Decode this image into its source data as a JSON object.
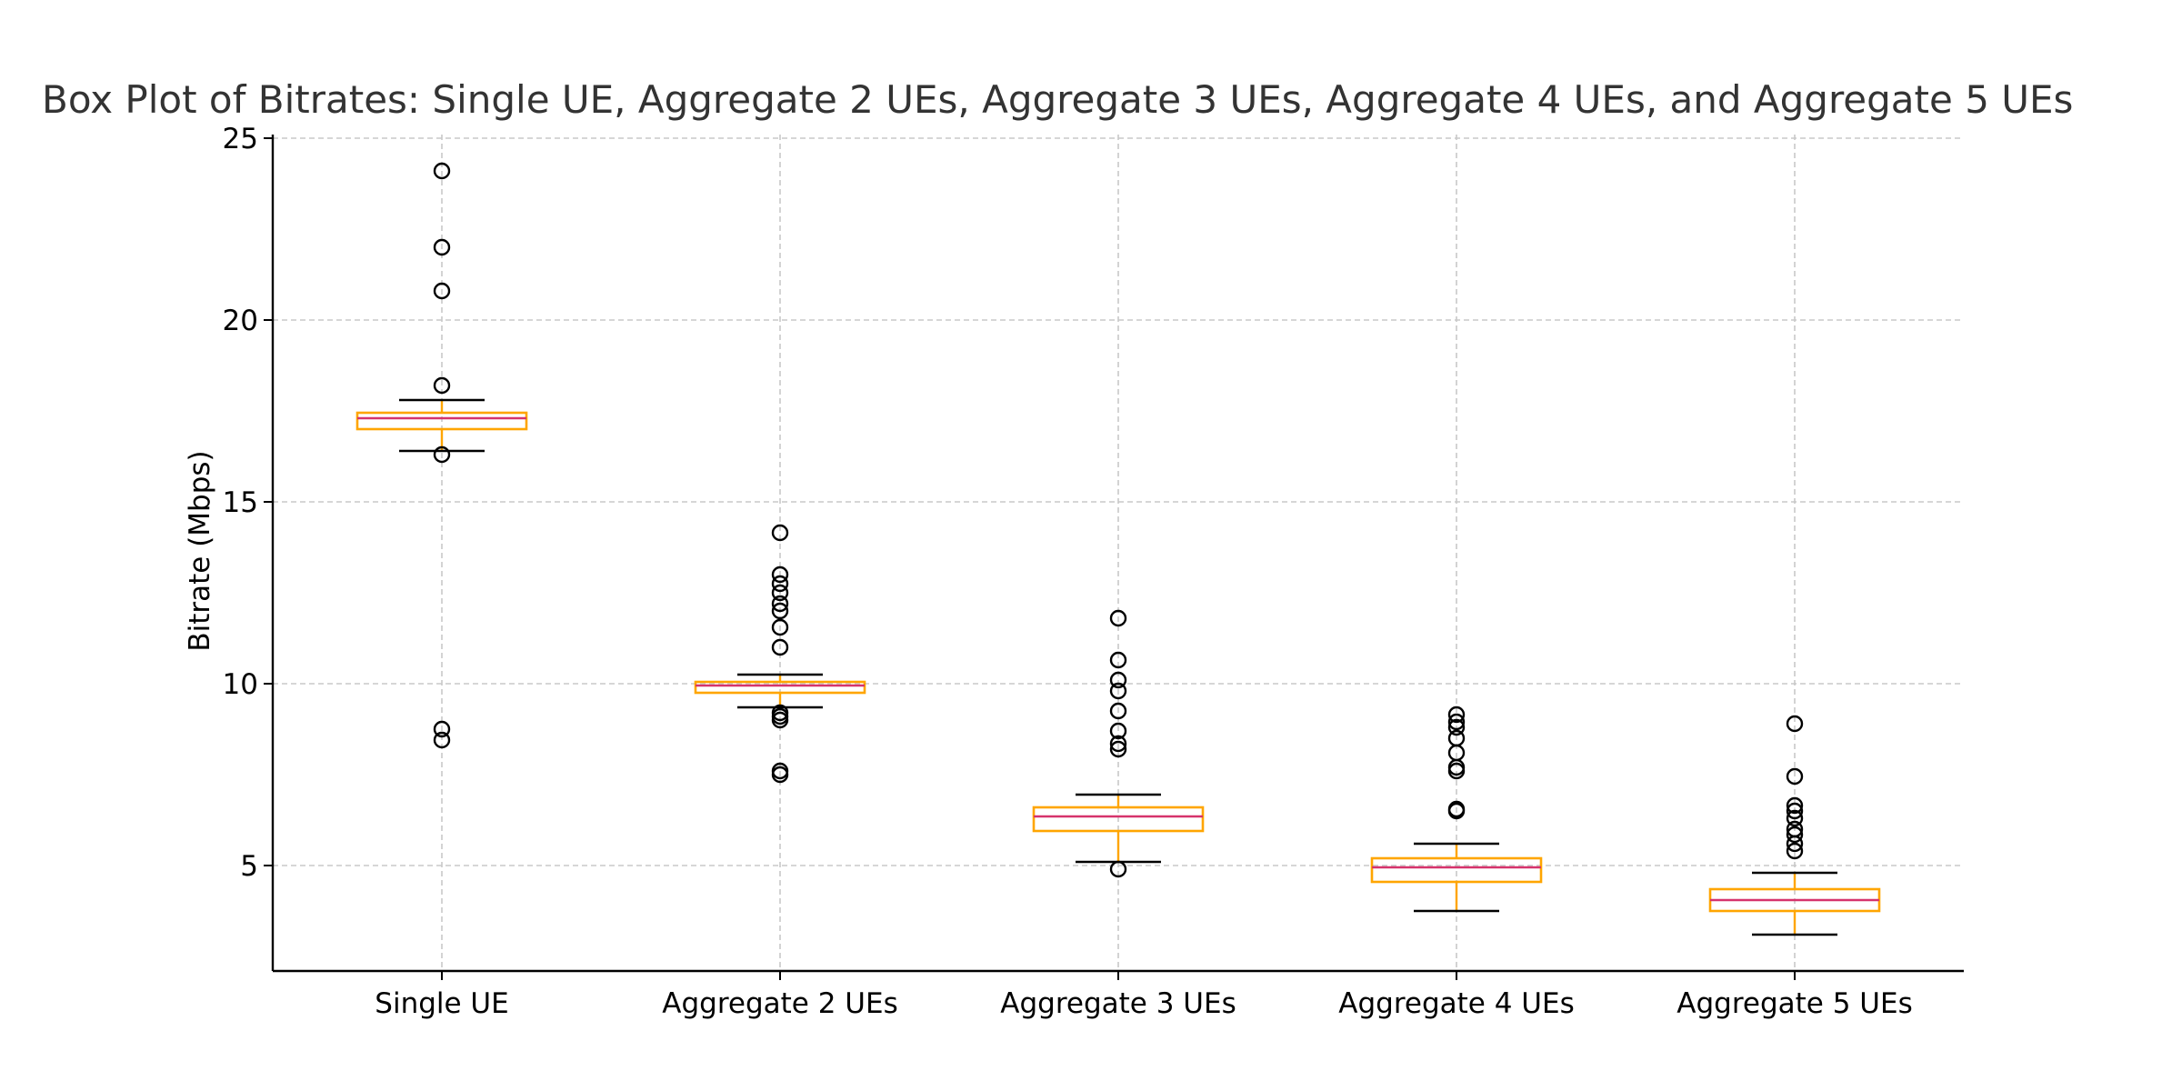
{
  "chart_data": {
    "type": "box",
    "title": "Box Plot of Bitrates: Single UE, Aggregate 2 UEs, Aggregate 3 UEs, Aggregate 4 UEs, and Aggregate 5 UEs",
    "xlabel": "",
    "ylabel": "Bitrate (Mbps)",
    "ylim": [
      2.1,
      25.1
    ],
    "yticks": [
      5,
      10,
      15,
      20,
      25
    ],
    "grid": true,
    "categories": [
      "Single UE",
      "Aggregate 2 UEs",
      "Aggregate 3 UEs",
      "Aggregate 4 UEs",
      "Aggregate 5 UEs"
    ],
    "boxes": [
      {
        "label": "Single UE",
        "whisker_low": 16.4,
        "q1": 17.0,
        "median": 17.3,
        "q3": 17.45,
        "whisker_high": 17.8,
        "outliers": [
          24.1,
          22.0,
          20.8,
          18.2,
          16.3,
          8.75,
          8.45
        ]
      },
      {
        "label": "Aggregate 2 UEs",
        "whisker_low": 9.35,
        "q1": 9.75,
        "median": 9.95,
        "q3": 10.05,
        "whisker_high": 10.25,
        "outliers": [
          14.15,
          13.0,
          12.75,
          12.5,
          12.2,
          12.0,
          11.55,
          11.0,
          9.2,
          9.1,
          9.0,
          7.6,
          7.5
        ]
      },
      {
        "label": "Aggregate 3 UEs",
        "whisker_low": 5.1,
        "q1": 5.95,
        "median": 6.35,
        "q3": 6.6,
        "whisker_high": 6.95,
        "outliers": [
          11.8,
          10.65,
          10.1,
          9.8,
          9.25,
          8.7,
          8.35,
          8.2,
          4.9
        ]
      },
      {
        "label": "Aggregate 4 UEs",
        "whisker_low": 3.75,
        "q1": 4.55,
        "median": 4.95,
        "q3": 5.2,
        "whisker_high": 5.6,
        "outliers": [
          9.15,
          8.95,
          8.8,
          8.5,
          8.1,
          7.7,
          7.6,
          6.55,
          6.5
        ]
      },
      {
        "label": "Aggregate 5 UEs",
        "whisker_low": 3.1,
        "q1": 3.75,
        "median": 4.05,
        "q3": 4.35,
        "whisker_high": 4.8,
        "outliers": [
          8.9,
          7.45,
          6.65,
          6.5,
          6.3,
          6.0,
          5.85,
          5.6,
          5.4
        ]
      }
    ],
    "colors": {
      "box": "#ffa500",
      "median": "#d6336c",
      "whisker": "#ffa500",
      "cap": "#000000",
      "outlier": "#000000",
      "grid": "#c8c8c8",
      "axis": "#000000",
      "title": "#333333"
    }
  }
}
